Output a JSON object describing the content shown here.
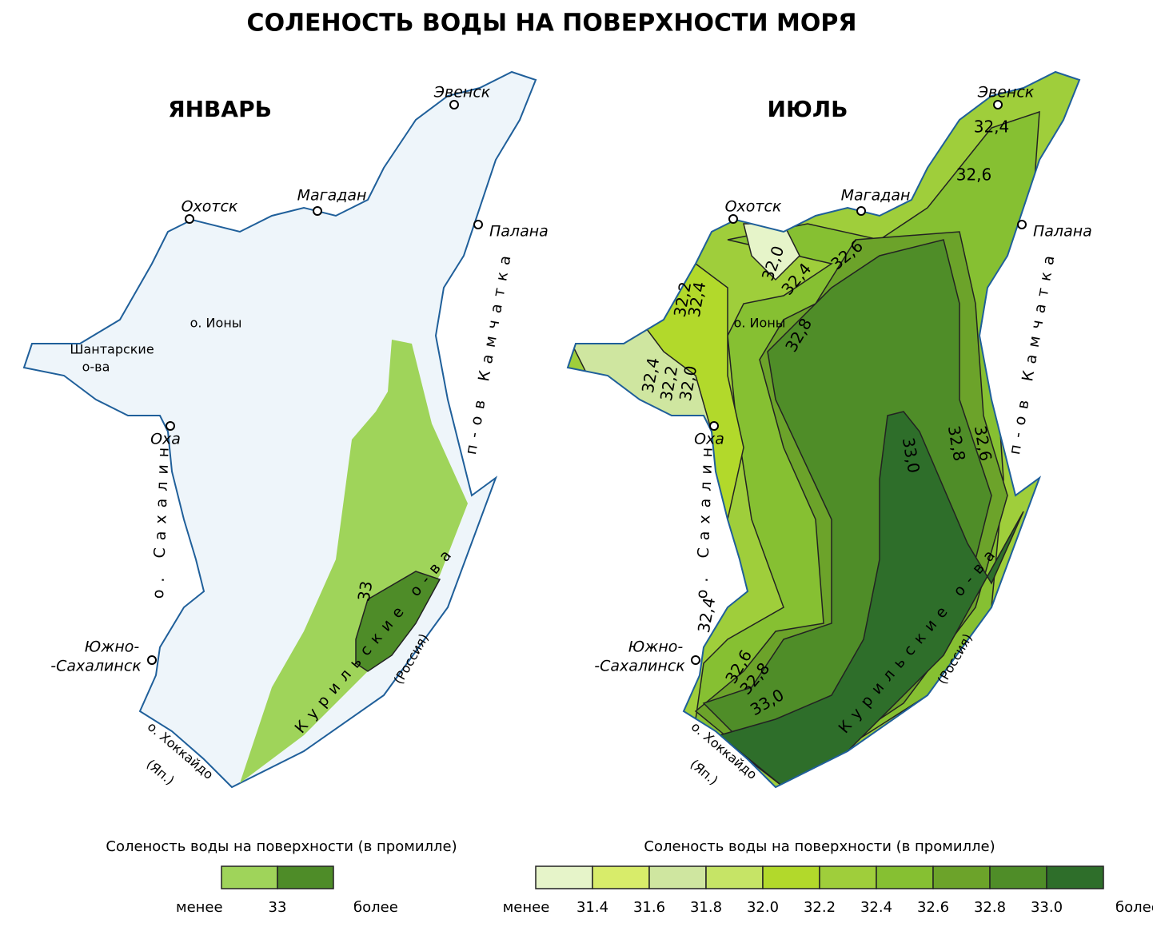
{
  "title": "СОЛЕНОСТЬ ВОДЫ НА ПОВЕРХНОСТИ МОРЯ",
  "maps": [
    {
      "title": "ЯНВАРЬ",
      "labels": [
        "Эвенск",
        "Охотск",
        "Магадан",
        "Палана",
        "Оха",
        "Южно-",
        "-Сахалинск",
        "о. Ионы",
        "п-ов  Камчатка",
        "о. Сахалин",
        "Курильские о-ва",
        "(Россия)",
        "о. Хоккайдо",
        "(Яп.)"
      ],
      "shantar": [
        "Шантарские",
        "о-ва"
      ],
      "isolines": [
        "33"
      ]
    },
    {
      "title": "ИЮЛЬ",
      "labels": [
        "Эвенск",
        "Охотск",
        "Магадан",
        "Палана",
        "Оха",
        "Южно-",
        "-Сахалинск",
        "о. Ионы",
        "п-ов  Камчатка",
        "о. Сахалин",
        "Курильские о-ва",
        "(Россия)",
        "о. Хоккайдо",
        "(Яп.)"
      ],
      "isolines": [
        "32,4",
        "32,6",
        "32,0",
        "32,4",
        "32,6",
        "32,2",
        "32,4",
        "32,8",
        "32,4",
        "32,2",
        "32,0",
        "32,8",
        "32,6",
        "33,0",
        "32,4",
        "32,6",
        "32,8",
        "33,0"
      ]
    }
  ],
  "legends": [
    {
      "caption": "Соленость воды на поверхности (в промилле)",
      "less": "менее",
      "more": "более",
      "ticks": [
        "33"
      ],
      "colors": [
        "#9fd45a",
        "#4e8c28"
      ]
    },
    {
      "caption": "Соленость воды на поверхности (в промилле)",
      "less": "менее",
      "more": "более",
      "ticks": [
        "31.4",
        "31.6",
        "31.8",
        "32.0",
        "32.2",
        "32.4",
        "32.6",
        "32.8",
        "33.0"
      ],
      "colors": [
        "#e6f4c9",
        "#d8ec6a",
        "#cfe6a0",
        "#c6e466",
        "#b2d92b",
        "#9fce3b",
        "#86c032",
        "#6ca32a",
        "#4f8d28",
        "#2e6e2a"
      ]
    }
  ]
}
